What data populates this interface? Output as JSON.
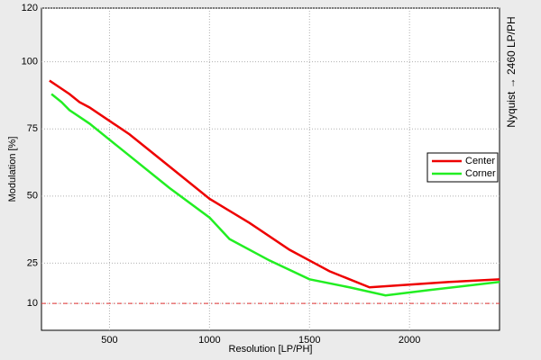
{
  "chart_data": {
    "type": "line",
    "xlabel": "Resolution [LP/PH]",
    "ylabel": "Modulation [%]",
    "right_label": "Nyquist → 2460 LP/PH",
    "xlim": [
      160,
      2450
    ],
    "xticks": [
      500,
      1000,
      1500,
      2000
    ],
    "ylim": [
      0,
      120
    ],
    "yticks": [
      10,
      25,
      50,
      75,
      100,
      120
    ],
    "grid": true,
    "legend": "right",
    "reference_line": 10,
    "reference_color": "#e03030",
    "series": [
      {
        "name": "Center",
        "color": "#ee0000",
        "x": [
          200,
          260,
          300,
          350,
          400,
          500,
          600,
          700,
          800,
          1000,
          1200,
          1400,
          1500,
          1600,
          1800,
          2000,
          2200,
          2450
        ],
        "values": [
          93,
          90,
          88,
          85,
          83,
          78,
          73,
          67,
          61,
          49,
          40,
          30,
          26,
          22,
          16,
          17,
          18,
          19
        ]
      },
      {
        "name": "Corner",
        "color": "#22ee22",
        "x": [
          210,
          260,
          300,
          400,
          500,
          600,
          800,
          1000,
          1100,
          1300,
          1500,
          1700,
          1880,
          2100,
          2450
        ],
        "values": [
          88,
          85,
          82,
          77,
          71,
          65,
          53,
          42,
          34,
          26,
          19,
          16,
          13,
          15,
          18
        ]
      }
    ]
  }
}
